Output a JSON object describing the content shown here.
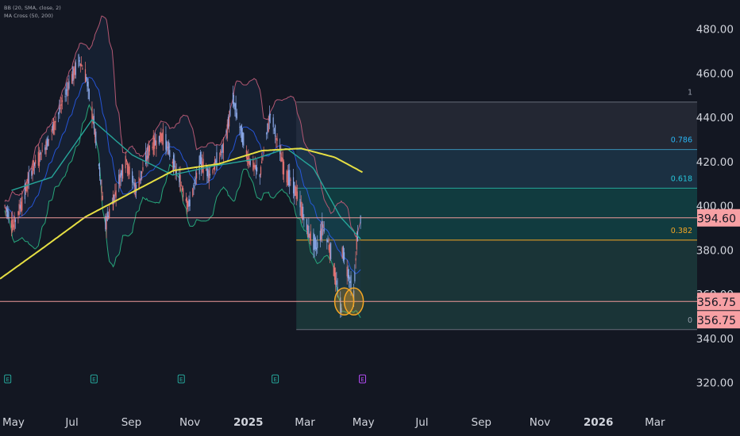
{
  "indicators": [
    "BB (20, SMA, close, 2)",
    "MA Cross (50, 200)"
  ],
  "chart_data": {
    "type": "candlestick",
    "y_ticks": [
      480,
      460,
      440,
      420,
      400,
      380,
      360,
      340,
      320
    ],
    "y_tick_labels": [
      "480.00",
      "460.00",
      "440.00",
      "420.00",
      "400.00",
      "380.00",
      "360.00",
      "340.00",
      "320.00"
    ],
    "ylim": [
      312,
      486
    ],
    "x_ticks": [
      "May",
      "Jul",
      "Sep",
      "Nov",
      "2025",
      "Mar",
      "May",
      "Jul",
      "Sep",
      "Nov",
      "2026",
      "Mar"
    ],
    "xlim": [
      "2024-04-17",
      "2026-04-14"
    ],
    "price_path": [
      [
        "2024-04-22",
        400
      ],
      [
        "2024-05-01",
        391
      ],
      [
        "2024-05-10",
        402
      ],
      [
        "2024-05-22",
        418
      ],
      [
        "2024-06-05",
        428
      ],
      [
        "2024-06-18",
        443
      ],
      [
        "2024-06-28",
        455
      ],
      [
        "2024-07-09",
        466
      ],
      [
        "2024-07-16",
        458
      ],
      [
        "2024-07-24",
        437
      ],
      [
        "2024-08-05",
        392
      ],
      [
        "2024-08-12",
        401
      ],
      [
        "2024-08-26",
        421
      ],
      [
        "2024-09-06",
        407
      ],
      [
        "2024-09-20",
        426
      ],
      [
        "2024-10-04",
        432
      ],
      [
        "2024-10-15",
        419
      ],
      [
        "2024-10-31",
        400
      ],
      [
        "2024-11-12",
        420
      ],
      [
        "2024-11-22",
        414
      ],
      [
        "2024-12-06",
        426
      ],
      [
        "2024-12-16",
        448
      ],
      [
        "2024-12-31",
        422
      ],
      [
        "2025-01-13",
        414
      ],
      [
        "2025-01-24",
        442
      ],
      [
        "2025-02-07",
        417
      ],
      [
        "2025-02-20",
        406
      ],
      [
        "2025-03-04",
        389
      ],
      [
        "2025-03-13",
        381
      ],
      [
        "2025-03-20",
        391
      ],
      [
        "2025-03-28",
        379
      ],
      [
        "2025-04-04",
        362
      ],
      [
        "2025-04-08",
        352
      ],
      [
        "2025-04-09",
        380
      ],
      [
        "2025-04-16",
        368
      ],
      [
        "2025-04-21",
        359
      ],
      [
        "2025-04-24",
        384
      ],
      [
        "2025-04-28",
        393
      ]
    ],
    "price_range": {
      "high": 469,
      "low": 344
    },
    "series": [
      {
        "name": "MA (50)",
        "color": "#26a69a",
        "points": [
          [
            "2024-04-29",
            407
          ],
          [
            "2024-06-10",
            413
          ],
          [
            "2024-07-22",
            439
          ],
          [
            "2024-09-02",
            423
          ],
          [
            "2024-10-14",
            414
          ],
          [
            "2024-11-25",
            418
          ],
          [
            "2025-01-06",
            421
          ],
          [
            "2025-02-10",
            426
          ],
          [
            "2025-03-10",
            417
          ],
          [
            "2025-04-07",
            395
          ],
          [
            "2025-04-28",
            385
          ]
        ]
      },
      {
        "name": "MA (200)",
        "color": "#e6df43",
        "points": [
          [
            "2024-04-17",
            367
          ],
          [
            "2024-06-01",
            381
          ],
          [
            "2024-07-15",
            395
          ],
          [
            "2024-09-01",
            406
          ],
          [
            "2024-10-15",
            416
          ],
          [
            "2024-12-01",
            419
          ],
          [
            "2025-01-15",
            425
          ],
          [
            "2025-02-25",
            426
          ],
          [
            "2025-04-01",
            422
          ],
          [
            "2025-05-01",
            415
          ]
        ]
      }
    ],
    "fibonacci": {
      "levels": [
        {
          "ratio": "1",
          "value": 447,
          "label_color": "#9aa0ad",
          "fill": "#2a2e39",
          "line": "#666b78"
        },
        {
          "ratio": "0.786",
          "value": 425.5,
          "label_color": "#29b6f6",
          "fill": "#1f3a4d",
          "line": "#3a8fb7"
        },
        {
          "ratio": "0.618",
          "value": 408,
          "label_color": "#26c6da",
          "fill": "#12484a",
          "line": "#26a69a"
        },
        {
          "ratio": "0.382",
          "value": 384.5,
          "label_color": "#f5a623",
          "fill": "#1d3f3f",
          "line": "#f5a623"
        },
        {
          "ratio": "0",
          "value": 344,
          "label_color": "#9aa0ad",
          "fill": "#3a2e1e",
          "line": "#666b78"
        }
      ],
      "start_date": "2025-02-20",
      "end_date": "2026-04-14"
    },
    "horizontal_lines": [
      {
        "value": 394.6,
        "label": "394.60",
        "color": "#ef9a9a",
        "label_bg": "#f7a0a4"
      },
      {
        "value": 356.75,
        "label": "356.75",
        "color": "#ef9a9a",
        "label_bg": "#f7a0a4"
      }
    ],
    "price_labels": [
      "394.60",
      "356.75",
      "356.75"
    ],
    "highlight_circles": [
      {
        "date": "2025-04-11",
        "value": 356.75,
        "color": "#f5a623"
      },
      {
        "date": "2025-04-21",
        "value": 356.75,
        "color": "#f5a623"
      }
    ],
    "event_markers": [
      {
        "date": "2024-04-25",
        "glyph": "E",
        "color": "#26a69a"
      },
      {
        "date": "2024-07-24",
        "glyph": "E",
        "color": "#26a69a"
      },
      {
        "date": "2024-10-23",
        "glyph": "E",
        "color": "#26a69a"
      },
      {
        "date": "2025-01-29",
        "glyph": "E",
        "color": "#26a69a"
      },
      {
        "date": "2025-04-30",
        "glyph": "E",
        "color": "#b24bf3"
      }
    ],
    "colors": {
      "up": "#8aa8e8",
      "down": "#e57373",
      "background": "#131722",
      "axis_text": "#d1d4dc",
      "bb_upper": "#b25772",
      "bb_lower": "#27a67a",
      "bb_basis": "#2962ff"
    }
  }
}
